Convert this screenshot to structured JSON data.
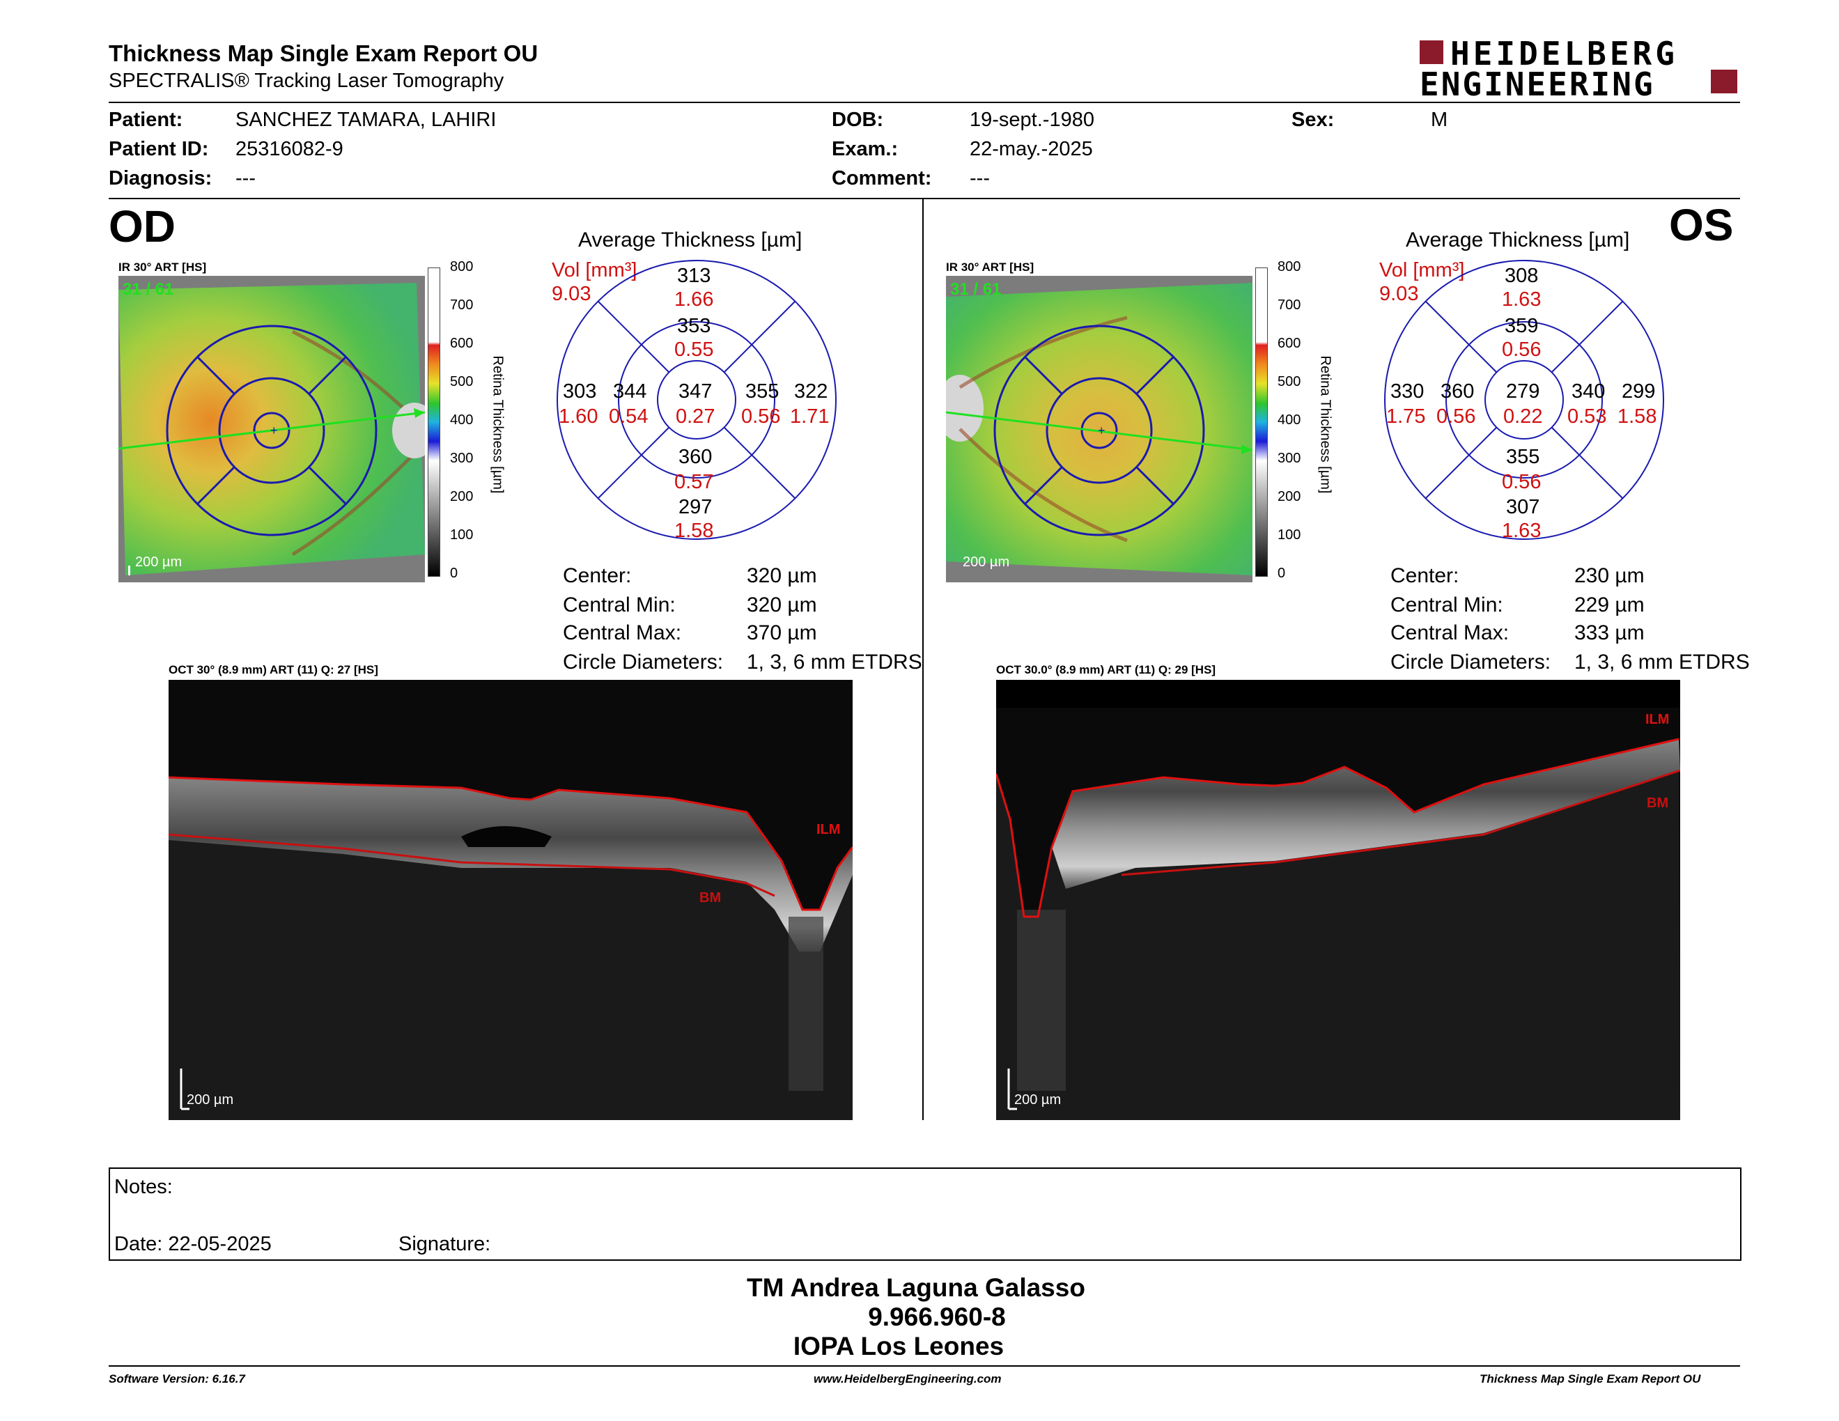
{
  "header": {
    "title": "Thickness Map Single Exam Report OU",
    "subtitle": "SPECTRALIS® Tracking Laser Tomography",
    "logo_line1": "HEIDELBERG",
    "logo_line2": "ENGINEERING"
  },
  "patient": {
    "patient_label": "Patient:",
    "patient_value": "SANCHEZ TAMARA, LAHIRI",
    "id_label": "Patient ID:",
    "id_value": "25316082-9",
    "diag_label": "Diagnosis:",
    "diag_value": "---",
    "dob_label": "DOB:",
    "dob_value": "19-sept.-1980",
    "exam_label": "Exam.:",
    "exam_value": "22-may.-2025",
    "comment_label": "Comment:",
    "comment_value": "---",
    "sex_label": "Sex:",
    "sex_value": "M"
  },
  "od": {
    "eye": "OD",
    "ir_label": "IR 30° ART [HS]",
    "ir_counter": "31 / 61",
    "scale": "200 µm",
    "avg_title": "Average Thickness [µm]",
    "vol_label": "Vol [mm³]",
    "vol_total": "9.03",
    "sectors": {
      "outer_sup_t": "313",
      "outer_sup_v": "1.66",
      "inner_sup_t": "353",
      "inner_sup_v": "0.55",
      "outer_left_t": "303",
      "outer_left_v": "1.60",
      "inner_left_t": "344",
      "inner_left_v": "0.54",
      "center_t": "347",
      "center_v": "0.27",
      "inner_right_t": "355",
      "inner_right_v": "0.56",
      "outer_right_t": "322",
      "outer_right_v": "1.71",
      "inner_inf_t": "360",
      "inner_inf_v": "0.57",
      "outer_inf_t": "297",
      "outer_inf_v": "1.58"
    },
    "stats": {
      "center_label": "Center:",
      "center_value": "320 µm",
      "min_label": "Central Min:",
      "min_value": "320 µm",
      "max_label": "Central Max:",
      "max_value": "370 µm",
      "circ_label": "Circle Diameters:",
      "circ_value": "1, 3, 6 mm ETDRS"
    },
    "oct_label": "OCT 30° (8.9 mm) ART (11) Q: 27 [HS]",
    "ilm": "ILM",
    "bm": "BM"
  },
  "os": {
    "eye": "OS",
    "ir_label": "IR 30° ART [HS]",
    "ir_counter": "31 / 61",
    "scale": "200 µm",
    "avg_title": "Average Thickness [µm]",
    "vol_label": "Vol [mm³]",
    "vol_total": "9.03",
    "sectors": {
      "outer_sup_t": "308",
      "outer_sup_v": "1.63",
      "inner_sup_t": "359",
      "inner_sup_v": "0.56",
      "outer_left_t": "330",
      "outer_left_v": "1.75",
      "inner_left_t": "360",
      "inner_left_v": "0.56",
      "center_t": "279",
      "center_v": "0.22",
      "inner_right_t": "340",
      "inner_right_v": "0.53",
      "outer_right_t": "299",
      "outer_right_v": "1.58",
      "inner_inf_t": "355",
      "inner_inf_v": "0.56",
      "outer_inf_t": "307",
      "outer_inf_v": "1.63"
    },
    "stats": {
      "center_label": "Center:",
      "center_value": "230 µm",
      "min_label": "Central Min:",
      "min_value": "229 µm",
      "max_label": "Central Max:",
      "max_value": "333 µm",
      "circ_label": "Circle Diameters:",
      "circ_value": "1, 3, 6 mm ETDRS"
    },
    "oct_label": "OCT 30.0° (8.9 mm) ART (11) Q: 29 [HS]",
    "ilm": "ILM",
    "bm": "BM"
  },
  "colorbar": {
    "title": "Retina Thickness [µm]",
    "ticks": [
      "800",
      "700",
      "600",
      "500",
      "400",
      "300",
      "200",
      "100",
      "0"
    ]
  },
  "notes": {
    "notes_label": "Notes:",
    "date_label": "Date: 22-05-2025",
    "signature_label": "Signature:"
  },
  "signoff": {
    "line1": "TM Andrea Laguna Galasso",
    "line2": "9.966.960-8",
    "line3": "IOPA Los Leones"
  },
  "footer": {
    "left": "Software Version: 6.16.7",
    "center": "www.HeidelbergEngineering.com",
    "right": "Thickness Map Single Exam Report OU"
  },
  "colors": {
    "etdrs_grid": "#1a1ab0",
    "volume_text": "#d01010",
    "retina_line": "#e01010",
    "logo_red": "#8b1a2a"
  }
}
